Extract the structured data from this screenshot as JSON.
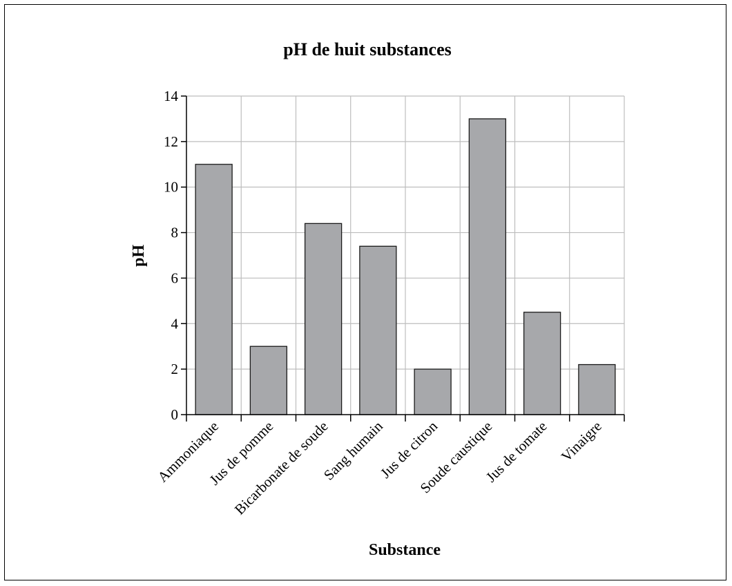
{
  "chart_data": {
    "type": "bar",
    "title": "pH de huit substances",
    "xlabel": "Substance",
    "ylabel": "pH",
    "categories": [
      "Ammoniaque",
      "Jus de pomme",
      "Bicarbonate de soude",
      "Sang humain",
      "Jus de citron",
      "Soude caustique",
      "Jus de tomate",
      "Vinaigre"
    ],
    "values": [
      11,
      3,
      8.4,
      7.4,
      2,
      13,
      4.5,
      2.2
    ],
    "ylim": [
      0,
      14
    ],
    "yticks": [
      "0",
      "2",
      "4",
      "6",
      "8",
      "10",
      "12",
      "14"
    ],
    "grid": true,
    "colors": {
      "bar_fill": "#a7a8ab",
      "bar_stroke": "#1a1a1a",
      "grid": "#bdbdbd",
      "axis": "#000000"
    }
  }
}
